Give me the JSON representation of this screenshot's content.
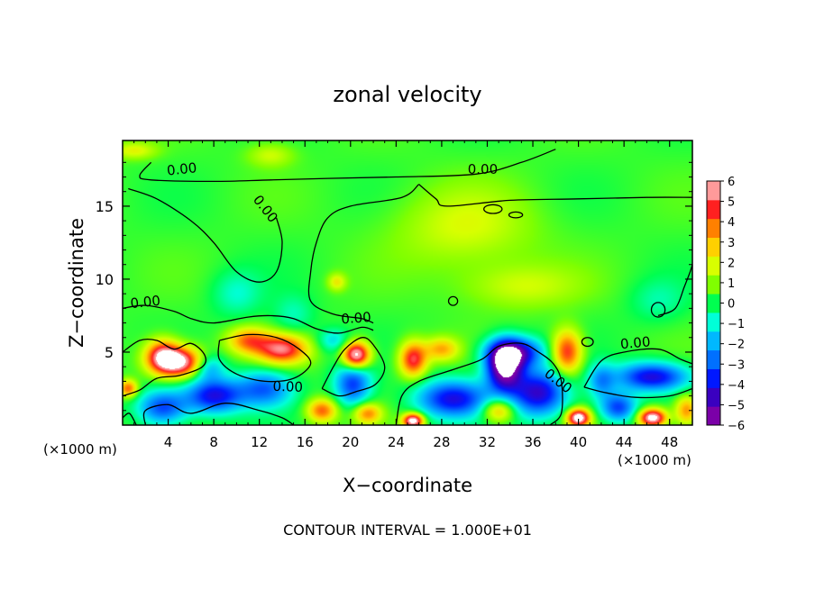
{
  "chart_data": {
    "type": "heatmap",
    "title": "zonal velocity",
    "xlabel": "X−coordinate",
    "ylabel": "Z−coordinate",
    "x_unit_left": "(×1000 m)",
    "x_unit_right": "(×1000 m)",
    "footer": "CONTOUR INTERVAL = 1.000E+01",
    "xlim": [
      0,
      50
    ],
    "ylim": [
      0,
      19.5
    ],
    "x_ticks": [
      4,
      8,
      12,
      16,
      20,
      24,
      28,
      32,
      36,
      40,
      44,
      48
    ],
    "x_tick_labels": [
      "4",
      "8",
      "12",
      "16",
      "20",
      "24",
      "28",
      "32",
      "36",
      "40",
      "44",
      "48"
    ],
    "y_ticks": [
      5,
      10,
      15
    ],
    "y_tick_labels": [
      "5",
      "10",
      "15"
    ],
    "colorbar": {
      "range": [
        -6,
        6
      ],
      "tick_values": [
        6,
        5,
        4,
        3,
        2,
        1,
        0,
        -1,
        -2,
        -3,
        -4,
        -5,
        -6
      ],
      "tick_labels": [
        "6",
        "5",
        "4",
        "3",
        "2",
        "1",
        "0",
        "−1",
        "−2",
        "−3",
        "−4",
        "−5",
        "−6"
      ],
      "colors": [
        "#7b00a8",
        "#3a00c0",
        "#0018ff",
        "#0070ff",
        "#00b8ff",
        "#00ffd8",
        "#00ff50",
        "#80ff00",
        "#d8ff00",
        "#ffd000",
        "#ff8000",
        "#ff2020",
        "#ff9a9a"
      ]
    },
    "contour_labels": [
      {
        "text": "0.00",
        "x": 5.2,
        "y": 17.5,
        "rot": -6
      },
      {
        "text": "0.00",
        "x": 31.6,
        "y": 17.5,
        "rot": 0
      },
      {
        "text": "0.00",
        "x": 12.5,
        "y": 14.8,
        "rot": 52
      },
      {
        "text": "0.00",
        "x": 2.0,
        "y": 8.4,
        "rot": -6
      },
      {
        "text": "0.00",
        "x": 20.5,
        "y": 7.3,
        "rot": -4
      },
      {
        "text": "0.00",
        "x": 14.5,
        "y": 2.6,
        "rot": 2
      },
      {
        "text": "0.00",
        "x": 38.2,
        "y": 3.0,
        "rot": 38
      },
      {
        "text": "0.00",
        "x": 45.0,
        "y": 5.6,
        "rot": -5
      }
    ],
    "features": [
      {
        "x": 5.0,
        "y": 4.3,
        "v": 6.4,
        "sx": 2.2,
        "sy": 1.0
      },
      {
        "x": 3.5,
        "y": 4.8,
        "v": 4.5,
        "sx": 1.5,
        "sy": 1.1
      },
      {
        "x": 14.0,
        "y": 5.2,
        "v": 5.2,
        "sx": 2.2,
        "sy": 1.0
      },
      {
        "x": 11.0,
        "y": 5.8,
        "v": 3.5,
        "sx": 1.8,
        "sy": 0.9
      },
      {
        "x": 20.5,
        "y": 4.8,
        "v": 7.0,
        "sx": 1.2,
        "sy": 0.9
      },
      {
        "x": 20.2,
        "y": 2.8,
        "v": -4.0,
        "sx": 1.6,
        "sy": 1.5
      },
      {
        "x": 25.5,
        "y": 4.5,
        "v": 5.0,
        "sx": 1.2,
        "sy": 1.2
      },
      {
        "x": 28.0,
        "y": 5.2,
        "v": 3.0,
        "sx": 1.5,
        "sy": 0.8
      },
      {
        "x": 33.5,
        "y": 4.0,
        "v": -7.0,
        "sx": 1.6,
        "sy": 1.6
      },
      {
        "x": 34.5,
        "y": 5.0,
        "v": -4.8,
        "sx": 2.4,
        "sy": 1.0
      },
      {
        "x": 39.0,
        "y": 5.0,
        "v": 4.8,
        "sx": 1.3,
        "sy": 1.5
      },
      {
        "x": 46.5,
        "y": 3.3,
        "v": -5.0,
        "sx": 3.2,
        "sy": 1.0
      },
      {
        "x": 8.0,
        "y": 2.0,
        "v": -4.8,
        "sx": 2.5,
        "sy": 1.2
      },
      {
        "x": 12.5,
        "y": 2.5,
        "v": -3.5,
        "sx": 2.5,
        "sy": 1.3
      },
      {
        "x": 3.5,
        "y": 1.2,
        "v": -4.0,
        "sx": 2.2,
        "sy": 1.2
      },
      {
        "x": 17.5,
        "y": 1.0,
        "v": 4.0,
        "sx": 1.3,
        "sy": 0.8
      },
      {
        "x": 21.5,
        "y": 0.8,
        "v": 3.5,
        "sx": 1.2,
        "sy": 0.7
      },
      {
        "x": 25.5,
        "y": 0.3,
        "v": 7.0,
        "sx": 0.9,
        "sy": 0.5
      },
      {
        "x": 29.0,
        "y": 1.8,
        "v": -4.8,
        "sx": 3.2,
        "sy": 1.3
      },
      {
        "x": 33.0,
        "y": 1.0,
        "v": 3.5,
        "sx": 1.4,
        "sy": 0.8
      },
      {
        "x": 36.5,
        "y": 2.2,
        "v": -5.2,
        "sx": 2.5,
        "sy": 1.6
      },
      {
        "x": 40.0,
        "y": 0.5,
        "v": 7.0,
        "sx": 1.0,
        "sy": 0.6
      },
      {
        "x": 43.5,
        "y": 1.2,
        "v": -4.0,
        "sx": 1.6,
        "sy": 1.0
      },
      {
        "x": 46.5,
        "y": 0.5,
        "v": 7.0,
        "sx": 1.2,
        "sy": 0.6
      },
      {
        "x": 49.5,
        "y": 1.0,
        "v": 3.5,
        "sx": 1.0,
        "sy": 1.0
      },
      {
        "x": 7.5,
        "y": 4.0,
        "v": -2.8,
        "sx": 1.4,
        "sy": 0.9
      },
      {
        "x": 18.5,
        "y": 5.8,
        "v": -1.8,
        "sx": 1.4,
        "sy": 0.8
      },
      {
        "x": 10.0,
        "y": 9.0,
        "v": -1.3,
        "sx": 2.2,
        "sy": 1.6
      },
      {
        "x": 15.0,
        "y": 7.5,
        "v": -1.2,
        "sx": 1.8,
        "sy": 1.4
      },
      {
        "x": 18.8,
        "y": 9.8,
        "v": 2.0,
        "sx": 0.8,
        "sy": 0.6
      },
      {
        "x": 30.0,
        "y": 13.5,
        "v": 1.6,
        "sx": 6.0,
        "sy": 2.8
      },
      {
        "x": 35.0,
        "y": 9.5,
        "v": 1.5,
        "sx": 5.0,
        "sy": 1.5
      },
      {
        "x": 1.0,
        "y": 18.8,
        "v": 1.8,
        "sx": 2.0,
        "sy": 0.6
      },
      {
        "x": 13.0,
        "y": 18.5,
        "v": 1.5,
        "sx": 2.0,
        "sy": 0.8
      },
      {
        "x": 47.0,
        "y": 8.5,
        "v": -1.0,
        "sx": 2.5,
        "sy": 1.5
      },
      {
        "x": 0.5,
        "y": 2.5,
        "v": 4.0,
        "sx": 0.8,
        "sy": 0.6
      },
      {
        "x": 42.0,
        "y": 3.0,
        "v": -2.5,
        "sx": 1.2,
        "sy": 1.2
      }
    ],
    "contours": [
      [
        [
          2.5,
          18.0
        ],
        [
          1.5,
          17.1
        ],
        [
          2.5,
          16.8
        ],
        [
          8.0,
          16.7
        ],
        [
          13.0,
          16.8
        ],
        [
          18.0,
          16.9
        ],
        [
          24.0,
          17.0
        ],
        [
          31.0,
          17.2
        ],
        [
          35.0,
          18.0
        ],
        [
          38.0,
          18.9
        ]
      ],
      [
        [
          0.5,
          16.2
        ],
        [
          3.0,
          15.5
        ],
        [
          6.0,
          14.0
        ],
        [
          8.0,
          12.5
        ],
        [
          10.0,
          10.5
        ],
        [
          12.0,
          9.8
        ],
        [
          13.5,
          10.5
        ],
        [
          14.0,
          12.5
        ],
        [
          13.5,
          14.2
        ]
      ],
      [
        [
          26.0,
          16.5
        ],
        [
          24.5,
          15.6
        ],
        [
          20.0,
          15.0
        ],
        [
          18.0,
          14.2
        ],
        [
          17.0,
          12.5
        ],
        [
          16.5,
          10.5
        ],
        [
          16.5,
          8.5
        ],
        [
          18.5,
          7.6
        ],
        [
          21.0,
          7.3
        ],
        [
          22.0,
          7.0
        ]
      ],
      [
        [
          26.0,
          16.5
        ],
        [
          27.5,
          15.5
        ],
        [
          28.5,
          15.0
        ],
        [
          34.0,
          15.4
        ],
        [
          40.0,
          15.5
        ],
        [
          46.0,
          15.6
        ],
        [
          50.0,
          15.6
        ]
      ],
      [
        [
          0.0,
          8.0
        ],
        [
          2.0,
          8.2
        ],
        [
          4.5,
          7.8
        ],
        [
          6.0,
          7.3
        ],
        [
          8.0,
          7.0
        ],
        [
          11.0,
          7.4
        ],
        [
          13.0,
          7.5
        ],
        [
          15.0,
          7.3
        ],
        [
          17.0,
          6.6
        ],
        [
          19.0,
          6.3
        ],
        [
          21.0,
          6.7
        ],
        [
          22.0,
          6.5
        ]
      ],
      [
        [
          0.0,
          5.0
        ],
        [
          1.5,
          5.8
        ],
        [
          3.0,
          5.8
        ],
        [
          4.5,
          5.2
        ],
        [
          6.0,
          5.6
        ],
        [
          7.2,
          4.8
        ],
        [
          7.0,
          4.0
        ],
        [
          5.0,
          3.4
        ],
        [
          3.0,
          3.2
        ],
        [
          1.5,
          2.4
        ],
        [
          0.0,
          2.0
        ]
      ],
      [
        [
          8.5,
          5.8
        ],
        [
          11.0,
          6.2
        ],
        [
          13.5,
          6.0
        ],
        [
          15.5,
          5.2
        ],
        [
          16.5,
          4.2
        ],
        [
          15.0,
          3.2
        ],
        [
          12.5,
          3.0
        ],
        [
          10.0,
          3.5
        ],
        [
          8.5,
          4.5
        ],
        [
          8.5,
          5.8
        ]
      ],
      [
        [
          2.0,
          0.0
        ],
        [
          2.0,
          1.0
        ],
        [
          4.0,
          1.4
        ],
        [
          6.0,
          0.8
        ],
        [
          9.0,
          1.5
        ],
        [
          12.0,
          1.0
        ],
        [
          14.0,
          0.5
        ],
        [
          15.0,
          0.0
        ]
      ],
      [
        [
          17.5,
          2.5
        ],
        [
          18.5,
          4.0
        ],
        [
          19.5,
          5.2
        ],
        [
          21.0,
          6.0
        ],
        [
          22.0,
          5.5
        ],
        [
          23.0,
          4.0
        ],
        [
          22.2,
          2.8
        ],
        [
          20.5,
          2.3
        ],
        [
          19.0,
          2.0
        ],
        [
          17.5,
          2.5
        ]
      ],
      [
        [
          24.0,
          0.0
        ],
        [
          24.5,
          2.0
        ],
        [
          26.0,
          3.0
        ],
        [
          29.0,
          3.8
        ],
        [
          31.5,
          4.5
        ],
        [
          33.0,
          5.4
        ],
        [
          35.0,
          5.6
        ],
        [
          36.5,
          5.0
        ],
        [
          37.8,
          4.2
        ],
        [
          38.5,
          3.0
        ],
        [
          38.5,
          0.8
        ],
        [
          37.5,
          0.0
        ]
      ],
      [
        [
          40.5,
          2.6
        ],
        [
          42.0,
          4.4
        ],
        [
          44.0,
          5.0
        ],
        [
          47.0,
          5.2
        ],
        [
          49.0,
          4.5
        ],
        [
          50.0,
          4.2
        ]
      ],
      [
        [
          40.5,
          2.6
        ],
        [
          42.5,
          2.2
        ],
        [
          45.0,
          1.9
        ],
        [
          48.0,
          2.0
        ],
        [
          50.0,
          2.5
        ]
      ],
      [
        [
          47.0,
          7.5
        ],
        [
          48.5,
          8.0
        ],
        [
          49.3,
          9.5
        ],
        [
          49.8,
          10.5
        ],
        [
          50.0,
          11.0
        ]
      ],
      [
        [
          0.0,
          0.5
        ],
        [
          0.6,
          0.8
        ],
        [
          1.2,
          0.0
        ]
      ]
    ],
    "closed_loops": [
      {
        "x": 32.5,
        "y": 14.8,
        "rx": 0.8,
        "ry": 0.3
      },
      {
        "x": 34.5,
        "y": 14.4,
        "rx": 0.6,
        "ry": 0.2
      },
      {
        "x": 47.0,
        "y": 7.9,
        "rx": 0.6,
        "ry": 0.5
      },
      {
        "x": 40.8,
        "y": 5.7,
        "rx": 0.5,
        "ry": 0.3
      },
      {
        "x": 29.0,
        "y": 8.5,
        "rx": 0.4,
        "ry": 0.3
      }
    ]
  }
}
